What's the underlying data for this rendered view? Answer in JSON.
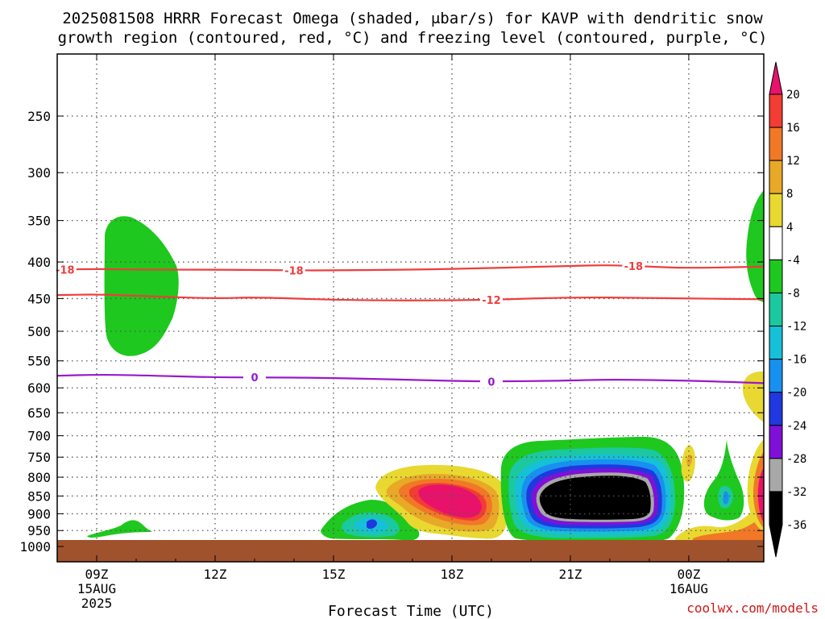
{
  "title_line1": "2025081508 HRRR Forecast Omega (shaded, μbar/s) for KAVP with dendritic snow",
  "title_line2": "growth region (contoured, red, °C) and freezing level (contoured, purple, °C)",
  "xlabel": "Forecast Time (UTC)",
  "credit": "coolwx.com/models",
  "chart_data": {
    "type": "heatmap",
    "title": "2025081508 HRRR Forecast Omega (shaded, μbar/s) for KAVP with dendritic snow growth region (contoured, red, °C) and freezing level (contoured, purple, °C)",
    "xlabel": "Forecast Time (UTC)",
    "ylabel": "",
    "x_ticks": [
      {
        "hour": 9,
        "label": "09Z",
        "sub": [
          "15AUG",
          "2025"
        ]
      },
      {
        "hour": 12,
        "label": "12Z",
        "sub": []
      },
      {
        "hour": 15,
        "label": "15Z",
        "sub": []
      },
      {
        "hour": 18,
        "label": "18Z",
        "sub": []
      },
      {
        "hour": 21,
        "label": "21Z",
        "sub": []
      },
      {
        "hour": 24,
        "label": "00Z",
        "sub": [
          "16AUG"
        ]
      }
    ],
    "x_range_hours": [
      8,
      25.9
    ],
    "y_ticks": [
      250,
      300,
      350,
      400,
      450,
      500,
      550,
      600,
      650,
      700,
      750,
      800,
      850,
      900,
      950,
      1000
    ],
    "y_range_hPa": [
      200,
      1000
    ],
    "y_scale": "log-pressure",
    "grid": true,
    "ground_pressure_hPa": 978,
    "colorbar": {
      "levels": [
        20,
        16,
        12,
        8,
        4,
        -4,
        -8,
        -12,
        -16,
        -20,
        -24,
        -28,
        -32,
        -36
      ],
      "colors": [
        "#e8126b",
        "#f23c34",
        "#f07826",
        "#e8a828",
        "#e8d830",
        "#ffffff",
        "#1ec81e",
        "#1cc8a0",
        "#16c0d8",
        "#1890f0",
        "#2038e0",
        "#8010d8",
        "#a8a8a8",
        "#000000"
      ],
      "top_arrow_color": "#e8126b",
      "bottom_arrow_color": "#000000"
    },
    "contours": [
      {
        "name": "-18",
        "color": "#f03c3c",
        "points": [
          [
            8,
            410
          ],
          [
            9,
            409
          ],
          [
            10,
            410
          ],
          [
            12,
            410
          ],
          [
            14,
            411
          ],
          [
            15,
            411
          ],
          [
            17,
            410
          ],
          [
            19,
            408
          ],
          [
            21,
            405
          ],
          [
            22,
            404
          ],
          [
            23,
            406
          ],
          [
            24,
            408
          ],
          [
            25.9,
            406
          ]
        ],
        "labels": [
          [
            8.2,
            "-18"
          ],
          [
            14.0,
            "-18"
          ],
          [
            22.6,
            "-18"
          ]
        ]
      },
      {
        "name": "-12",
        "color": "#f03c3c",
        "points": [
          [
            8,
            445
          ],
          [
            9,
            444
          ],
          [
            10,
            446
          ],
          [
            12,
            450
          ],
          [
            13,
            448
          ],
          [
            15,
            452
          ],
          [
            17,
            453
          ],
          [
            19,
            452
          ],
          [
            21,
            448
          ],
          [
            23,
            449
          ],
          [
            24,
            450
          ],
          [
            25.9,
            451
          ]
        ],
        "labels": [
          [
            19.0,
            "-12"
          ]
        ]
      },
      {
        "name": "0",
        "color": "#9a18c8",
        "points": [
          [
            8,
            577
          ],
          [
            9,
            575
          ],
          [
            10,
            576
          ],
          [
            12,
            580
          ],
          [
            13,
            580
          ],
          [
            15,
            581
          ],
          [
            17,
            585
          ],
          [
            19,
            588
          ],
          [
            21,
            586
          ],
          [
            22,
            584
          ],
          [
            24,
            586
          ],
          [
            25.9,
            591
          ]
        ],
        "labels": [
          [
            13.0,
            "0"
          ],
          [
            19.0,
            "0"
          ]
        ]
      }
    ]
  }
}
